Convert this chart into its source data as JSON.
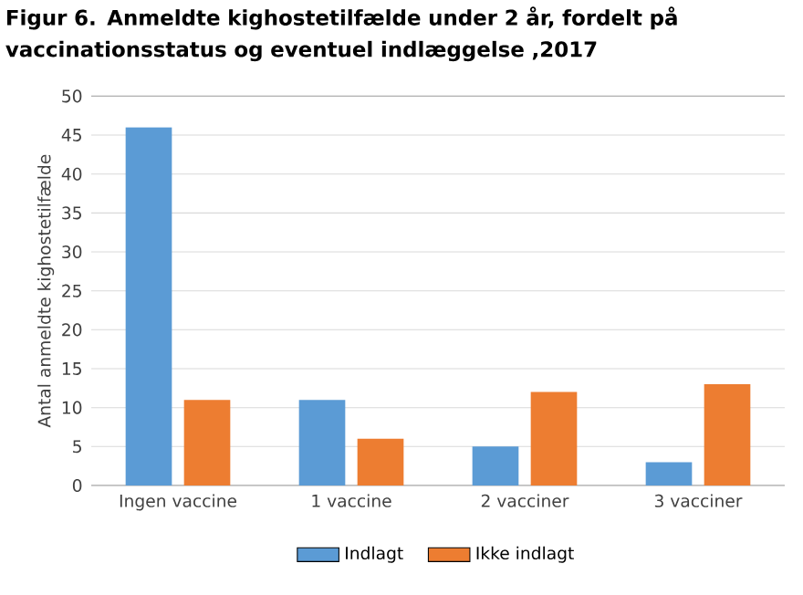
{
  "chart_data": {
    "type": "bar",
    "title": "Figur 6. Anmeldte kighostetilfælde under 2 år, fordelt på vaccinationsstatus og eventuel indlæggelse ,2017",
    "ylabel": "Antal anmeldte kighostetilfælde",
    "categories": [
      "Ingen vaccine",
      "1 vaccine",
      "2 vacciner",
      "3 vacciner"
    ],
    "series": [
      {
        "name": "Indlagt",
        "color": "#5b9bd5",
        "values": [
          46,
          11,
          5,
          3
        ]
      },
      {
        "name": "Ikke indlagt",
        "color": "#ed7d31",
        "values": [
          11,
          6,
          12,
          13
        ]
      }
    ],
    "ylim": [
      0,
      50
    ],
    "yticks": [
      0,
      5,
      10,
      15,
      20,
      25,
      30,
      35,
      40,
      45,
      50
    ],
    "grid": "y",
    "legend": "bottom"
  }
}
